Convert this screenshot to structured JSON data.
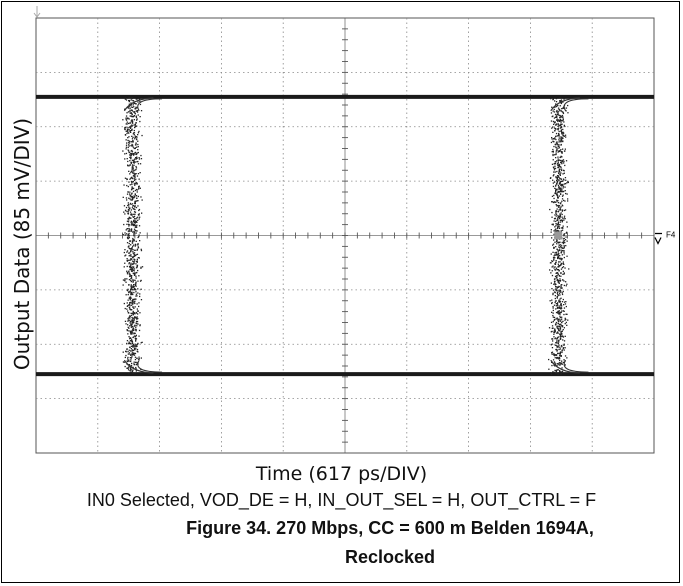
{
  "chart_data": {
    "type": "line",
    "subtype": "oscilloscope eye diagram",
    "xlabel": "Time (617 ps/DIV)",
    "ylabel": "Output Data (85 mV/DIV)",
    "grid": true,
    "grid_style": "dotted",
    "x_divisions": 10,
    "y_divisions": 8,
    "x_per_div_ps": 617,
    "y_per_div_mV": 85,
    "ylim_div": [
      -4,
      4
    ],
    "xlim_div": [
      -5,
      5
    ],
    "high_level_div": 2.55,
    "low_level_div": -2.55,
    "transition_centers_div": [
      -3.45,
      3.45
    ],
    "marker_label": "F4",
    "series": [
      {
        "name": "",
        "x": [
          -5,
          -3.7,
          -3.55,
          -3.45,
          -3.35,
          -3.2,
          3.2,
          3.35,
          3.45,
          3.55,
          3.7,
          5
        ],
        "y": [
          2.55,
          2.55,
          2.0,
          0,
          -2.0,
          -2.55,
          -2.55,
          -2.0,
          0,
          2.0,
          2.55,
          2.55
        ]
      },
      {
        "name": "",
        "x": [
          -5,
          -3.7,
          -3.55,
          -3.45,
          -3.35,
          -3.2,
          3.2,
          3.35,
          3.45,
          3.55,
          3.7,
          5
        ],
        "y": [
          -2.55,
          -2.55,
          -2.0,
          0,
          2.0,
          2.55,
          2.55,
          2.0,
          0,
          -2.0,
          -2.55,
          -2.55
        ]
      }
    ]
  },
  "conditions": "IN0 Selected, VOD_DE = H, IN_OUT_SEL = H, OUT_CTRL = F",
  "figure_caption_line1": "Figure 34. 270 Mbps, CC = 600 m Belden 1694A,",
  "figure_caption_line2": "Reclocked"
}
